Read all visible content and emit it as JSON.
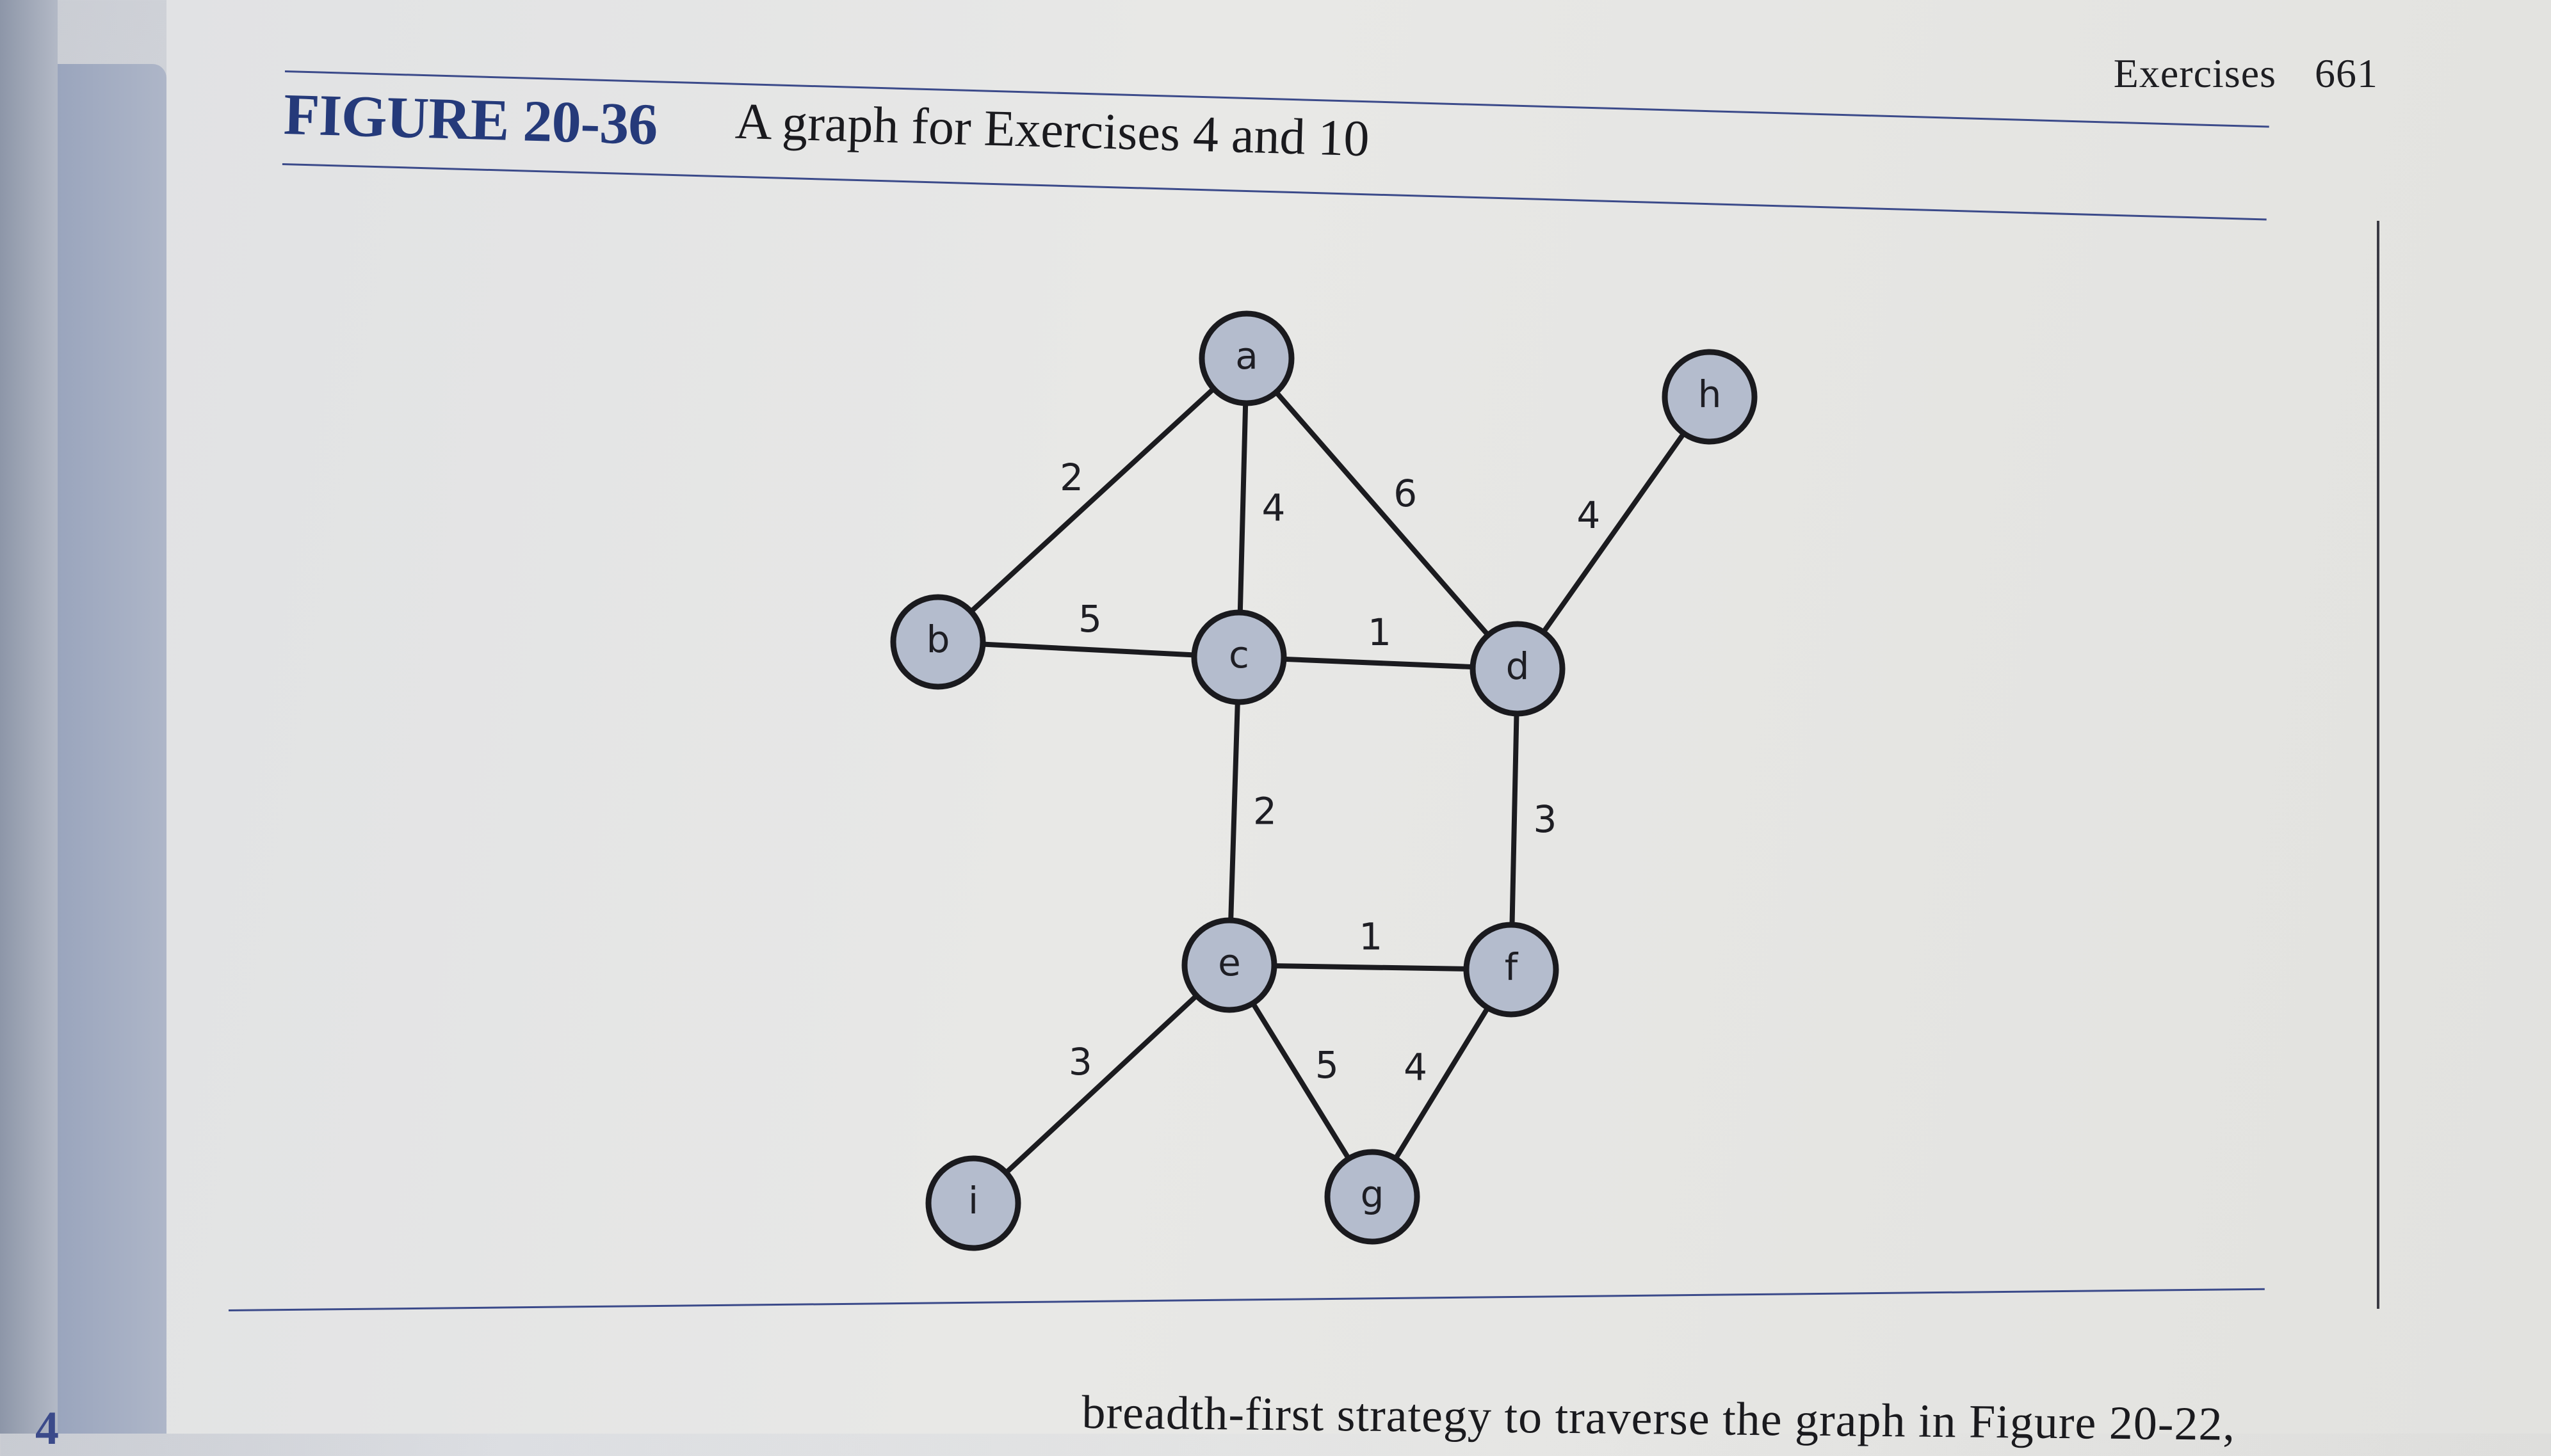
{
  "running_head": {
    "section": "Exercises",
    "page_number": "661"
  },
  "figure": {
    "label": "FIGURE 20-36",
    "caption": "A graph for Exercises 4 and 10"
  },
  "graph": {
    "nodes": [
      "a",
      "b",
      "c",
      "d",
      "e",
      "f",
      "g",
      "h",
      "i"
    ],
    "edges": [
      {
        "from": "a",
        "to": "b",
        "weight": "2"
      },
      {
        "from": "a",
        "to": "c",
        "weight": "4"
      },
      {
        "from": "a",
        "to": "d",
        "weight": "6"
      },
      {
        "from": "b",
        "to": "c",
        "weight": "5"
      },
      {
        "from": "c",
        "to": "d",
        "weight": "1"
      },
      {
        "from": "d",
        "to": "h",
        "weight": "4"
      },
      {
        "from": "c",
        "to": "e",
        "weight": "2"
      },
      {
        "from": "d",
        "to": "f",
        "weight": "3"
      },
      {
        "from": "e",
        "to": "f",
        "weight": "1"
      },
      {
        "from": "e",
        "to": "i",
        "weight": "3"
      },
      {
        "from": "e",
        "to": "g",
        "weight": "5"
      },
      {
        "from": "f",
        "to": "g",
        "weight": "4"
      }
    ]
  },
  "body_text": "breadth-first strategy to traverse the graph in Figure 20-22,"
}
